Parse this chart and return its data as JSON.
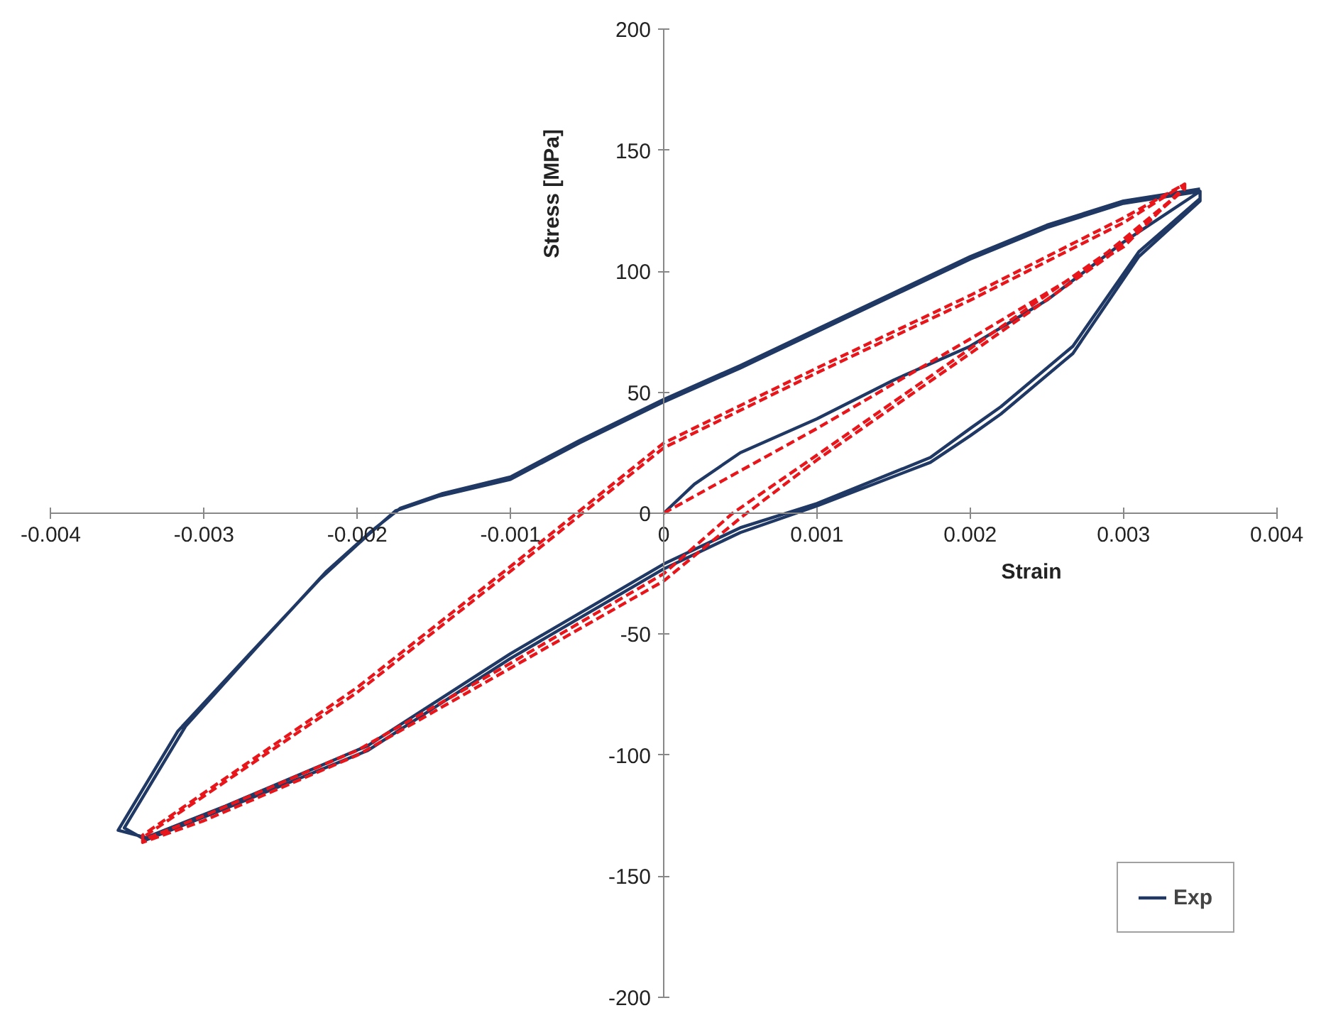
{
  "chart_data": {
    "type": "line",
    "xlabel": "Strain",
    "ylabel": "Stress [MPa]",
    "xlim": [
      -0.004,
      0.004
    ],
    "ylim": [
      -200,
      200
    ],
    "xticks": [
      -0.004,
      -0.003,
      -0.002,
      -0.001,
      0,
      0.001,
      0.002,
      0.003,
      0.004
    ],
    "yticks": [
      -200,
      -150,
      -100,
      -50,
      0,
      50,
      100,
      150,
      200
    ],
    "grid": false,
    "legend": "bottom right",
    "marker": "none",
    "series": [
      {
        "name": "Exp",
        "color": "#1f3864",
        "line_style": "solid",
        "x": [
          0,
          0.0002,
          0.0005,
          0.001,
          0.0015,
          0.002,
          0.0025,
          0.003,
          0.0035,
          0.0035,
          0.0031,
          0.00267,
          0.0022,
          0.002,
          0.00174,
          0.001,
          0.0005,
          0,
          -0.001,
          -0.00193,
          -0.00286,
          -0.00338,
          -0.00356,
          -0.00317,
          -0.0027,
          -0.00224,
          -0.00193,
          -0.00175,
          -0.00147,
          -0.001,
          -0.00055,
          0,
          0.0005,
          0.001,
          0.0015,
          0.002,
          0.0025,
          0.003,
          0.0035,
          0.0035,
          0.0031,
          0.00267,
          0.0022,
          0.002,
          0.00174,
          0.001,
          0.0005,
          0,
          -0.001,
          -0.00193,
          -0.00286,
          -0.00338,
          -0.00352,
          -0.00312,
          -0.00265,
          -0.0022,
          -0.0019,
          -0.00172,
          -0.00145,
          -0.001,
          -0.00055,
          0,
          0.0005,
          0.001,
          0.0015,
          0.002,
          0.0025,
          0.003,
          0.0035
        ],
        "values": [
          0,
          12,
          25,
          39,
          55,
          69,
          88,
          112,
          133,
          130,
          108,
          69,
          44,
          35,
          23,
          4,
          -6,
          -21,
          -58,
          -96,
          -121,
          -134,
          -131,
          -90,
          -58,
          -27,
          -9,
          1,
          7,
          14,
          29,
          46,
          60,
          75,
          90,
          105,
          118,
          128,
          133,
          129,
          106,
          66,
          41,
          32,
          21,
          3,
          -8,
          -23,
          -60,
          -98,
          -122,
          -135,
          -130,
          -88,
          -55,
          -24,
          -7,
          2,
          8,
          15,
          30,
          47,
          61,
          76,
          91,
          106,
          119,
          129,
          134
        ]
      },
      {
        "color": "#e8151b",
        "line_style": "dashed",
        "x": [
          0,
          0.001,
          0.002,
          0.003,
          0.0034,
          0.0034,
          0.0029,
          0.002,
          0.001,
          0.00045,
          0,
          -0.001,
          -0.002,
          -0.003,
          -0.0034,
          -0.0034,
          -0.002,
          -0.001,
          0,
          0.001,
          0.002,
          0.003,
          0.0034,
          0.0034,
          0.0029,
          0.002,
          0.001,
          0.0005,
          0,
          -0.001,
          -0.002,
          -0.003,
          -0.0034,
          -0.0034,
          -0.002,
          -0.001,
          0,
          0.001,
          0.002,
          0.003,
          0.0034
        ],
        "values": [
          0,
          35,
          72,
          110,
          135,
          134,
          108,
          68,
          24,
          0,
          -25,
          -62,
          -98,
          -125,
          -135,
          -133,
          -72,
          -22,
          29,
          60,
          90,
          122,
          136,
          134,
          106,
          66,
          22,
          -2,
          -28,
          -64,
          -100,
          -127,
          -136,
          -134,
          -74,
          -24,
          27,
          58,
          88,
          120,
          136
        ]
      }
    ]
  }
}
